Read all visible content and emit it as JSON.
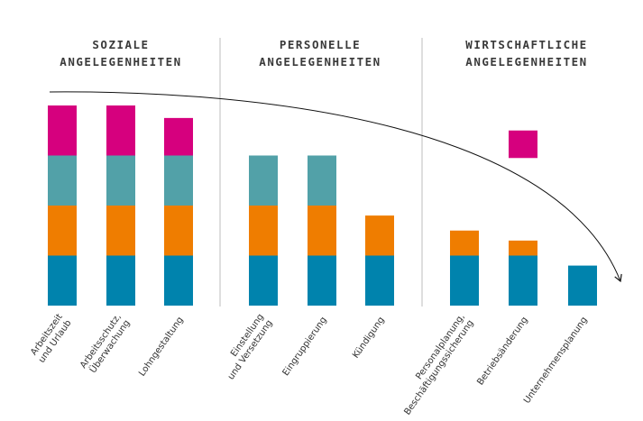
{
  "chart_data": {
    "type": "bar",
    "stacked": true,
    "title": "",
    "xlabel": "",
    "ylabel": "",
    "ylim": [
      0,
      4
    ],
    "groups": [
      {
        "title_lines": [
          "SOZIALE",
          "ANGELEGENHEITEN"
        ],
        "categories": [
          0,
          1,
          2
        ]
      },
      {
        "title_lines": [
          "PERSONELLE",
          "ANGELEGENHEITEN"
        ],
        "categories": [
          3,
          4,
          5
        ]
      },
      {
        "title_lines": [
          "WIRTSCHAFTLICHE",
          "ANGELEGENHEITEN"
        ],
        "categories": [
          6,
          7,
          8
        ]
      }
    ],
    "categories": [
      [
        "Arbeitszeit",
        "und Urlaub"
      ],
      [
        "Arbeitsschutz,",
        "Überwachung"
      ],
      [
        "Lohngestaltung"
      ],
      [
        "Einstellung",
        "und Versetzung"
      ],
      [
        "Eingruppierung"
      ],
      [
        "Kündigung"
      ],
      [
        "Personalplanung,",
        "Beschäftigungssicherung"
      ],
      [
        "Betriebsänderung"
      ],
      [
        "Unternehmensplanung"
      ]
    ],
    "series": [
      {
        "name": "level-1",
        "color": "#0083ad",
        "values": [
          1,
          1,
          1,
          1,
          1,
          1,
          1,
          1,
          0.8
        ]
      },
      {
        "name": "level-2",
        "color": "#ef7d00",
        "values": [
          1,
          1,
          1,
          1,
          1,
          0.8,
          0.5,
          0.3,
          0
        ]
      },
      {
        "name": "level-3",
        "color": "#52a1a8",
        "values": [
          1,
          1,
          1,
          1,
          1,
          0,
          0,
          0,
          0
        ]
      },
      {
        "name": "level-4",
        "color": "#d6007e",
        "values": [
          1,
          1,
          0.75,
          0,
          0,
          0,
          0,
          0,
          0
        ]
      }
    ],
    "floating_segments": [
      {
        "category": 7,
        "series": "level-4",
        "from": 2.95,
        "to": 3.5
      }
    ],
    "annotation": "curved arrow indicating decreasing co-determination rights"
  }
}
